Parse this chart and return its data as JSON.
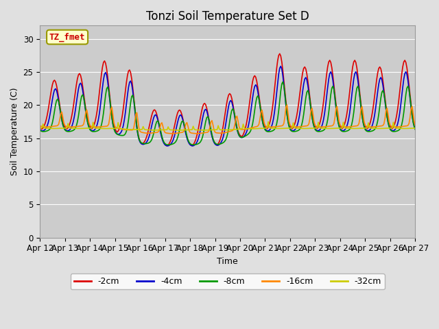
{
  "title": "Tonzi Soil Temperature Set D",
  "xlabel": "Time",
  "ylabel": "Soil Temperature (C)",
  "legend_label": "TZ_fmet",
  "series_labels": [
    "-2cm",
    "-4cm",
    "-8cm",
    "-16cm",
    "-32cm"
  ],
  "series_colors": [
    "#dd0000",
    "#0000cc",
    "#009900",
    "#ff8800",
    "#cccc00"
  ],
  "ylim": [
    0,
    32
  ],
  "yticks": [
    0,
    5,
    10,
    15,
    20,
    25,
    30
  ],
  "background_color": "#e0e0e0",
  "plot_bg_color": "#cccccc",
  "legend_box_color": "#ffffcc",
  "legend_text_color": "#cc0000",
  "linewidth": 1.2,
  "title_fontsize": 12,
  "axis_fontsize": 9,
  "tick_fontsize": 8.5
}
